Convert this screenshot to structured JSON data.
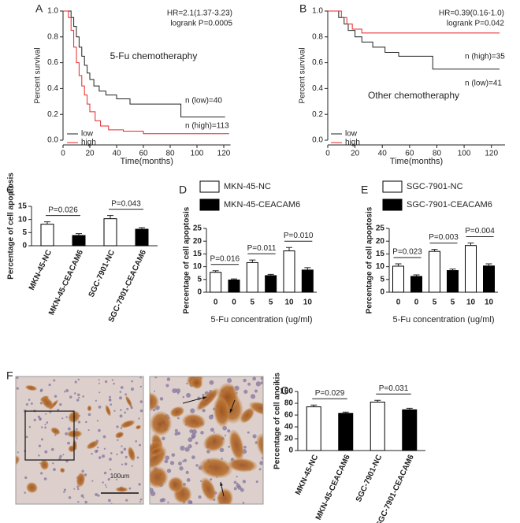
{
  "chart_data": [
    {
      "type": "line",
      "step": true,
      "panel": "A",
      "xlabel": "Time(months)",
      "ylabel": "Percent survival",
      "xlim": [
        0,
        125
      ],
      "xticks": [
        0,
        20,
        40,
        60,
        80,
        100,
        120
      ],
      "ylim": [
        0,
        1
      ],
      "yticks": [
        {
          "value": 0,
          "label": "0.0"
        },
        0.2,
        0.4,
        0.6,
        0.8,
        {
          "value": 1,
          "label": "1.0"
        }
      ],
      "annotations": [
        "HR=2.1(1.37-3.23)",
        "logrank P=0.0005",
        "5-Fu chemotheraphy",
        "n (low)=40",
        "n (high)=113"
      ],
      "legend": "lower left",
      "series": [
        {
          "name": "low",
          "color": "#222222",
          "x": [
            0,
            6,
            6,
            8,
            8,
            10,
            10,
            12,
            12,
            14,
            14,
            16,
            16,
            18,
            18,
            20,
            20,
            23,
            23,
            27,
            27,
            32,
            32,
            40,
            40,
            50,
            50,
            88,
            88,
            121
          ],
          "values": [
            1,
            1,
            0.95,
            0.95,
            0.88,
            0.88,
            0.8,
            0.8,
            0.72,
            0.72,
            0.65,
            0.65,
            0.58,
            0.58,
            0.52,
            0.52,
            0.47,
            0.47,
            0.42,
            0.42,
            0.38,
            0.38,
            0.35,
            0.35,
            0.32,
            0.32,
            0.28,
            0.28,
            0.18,
            0.18
          ]
        },
        {
          "name": "high",
          "color": "#e8262a",
          "x": [
            0,
            4,
            4,
            6,
            6,
            8,
            8,
            10,
            10,
            12,
            12,
            14,
            14,
            16,
            16,
            18,
            18,
            20,
            20,
            24,
            24,
            28,
            28,
            34,
            34,
            45,
            45,
            60,
            60,
            124
          ],
          "values": [
            1,
            1,
            0.95,
            0.95,
            0.85,
            0.85,
            0.72,
            0.72,
            0.6,
            0.6,
            0.5,
            0.5,
            0.42,
            0.42,
            0.35,
            0.35,
            0.28,
            0.28,
            0.22,
            0.22,
            0.15,
            0.15,
            0.11,
            0.11,
            0.08,
            0.08,
            0.07,
            0.07,
            0.05,
            0.05
          ]
        }
      ]
    },
    {
      "type": "line",
      "step": true,
      "panel": "B",
      "xlabel": "Time(months)",
      "ylabel": "Percent survival",
      "xlim": [
        0,
        130
      ],
      "xticks": [
        0,
        20,
        40,
        60,
        80,
        100,
        120
      ],
      "ylim": [
        0,
        1
      ],
      "yticks": [
        {
          "value": 0,
          "label": "0.0"
        },
        0.2,
        0.4,
        0.6,
        0.8,
        {
          "value": 1,
          "label": "1.0"
        }
      ],
      "annotations": [
        "HR=0.39(0.16-1.0)",
        "logrank P=0.042",
        "Other chemotheraphy",
        "n (high)=35",
        "n (low)=41"
      ],
      "legend": "lower left",
      "series": [
        {
          "name": "low",
          "color": "#222222",
          "x": [
            0,
            8,
            8,
            12,
            12,
            15,
            15,
            20,
            20,
            25,
            25,
            33,
            33,
            42,
            42,
            52,
            52,
            77,
            77,
            126
          ],
          "values": [
            1,
            1,
            0.95,
            0.95,
            0.9,
            0.9,
            0.85,
            0.85,
            0.8,
            0.8,
            0.76,
            0.76,
            0.72,
            0.72,
            0.68,
            0.68,
            0.65,
            0.65,
            0.55,
            0.55
          ]
        },
        {
          "name": "high",
          "color": "#e8262a",
          "x": [
            0,
            10,
            10,
            14,
            14,
            18,
            18,
            25,
            25,
            126
          ],
          "values": [
            1,
            1,
            0.95,
            0.95,
            0.9,
            0.9,
            0.86,
            0.86,
            0.83,
            0.83
          ]
        }
      ]
    },
    {
      "type": "bar",
      "panel": "C",
      "ylabel": "Percentage of cell apoptosis",
      "categories": [
        "MKN-45-NC",
        "MKN-45-CEACAM6",
        "SGC-7901-NC",
        "SGC-7901-CEACAM6"
      ],
      "values": [
        8.2,
        3.9,
        10.3,
        6.3
      ],
      "errors": [
        0.9,
        0.7,
        1.2,
        0.6
      ],
      "colors": [
        "#ffffff",
        "#000000",
        "#ffffff",
        "#000000"
      ],
      "ylim": [
        0,
        15
      ],
      "yticks": [
        0,
        5,
        10,
        15
      ],
      "annotations": [
        "P=0.026",
        "P=0.043"
      ]
    },
    {
      "type": "grouped_bar",
      "panel": "D",
      "ylabel": "Percentage of cell apoptosis",
      "xlabel": "5-Fu concentration (ug/ml)",
      "categories": [
        "0",
        "5",
        "10"
      ],
      "series": [
        {
          "name": "MKN-45-NC",
          "color": "#ffffff",
          "values": [
            7.8,
            11.6,
            16.2
          ],
          "errors": [
            0.6,
            1.0,
            1.3
          ]
        },
        {
          "name": "MKN-45-CEACAM6",
          "color": "#000000",
          "values": [
            4.8,
            6.5,
            8.7
          ],
          "errors": [
            0.4,
            0.5,
            0.9
          ]
        }
      ],
      "ylim": [
        0,
        25
      ],
      "yticks": [
        0,
        5,
        10,
        15,
        20,
        25
      ],
      "annotations": [
        "P=0.016",
        "P=0.011",
        "P=0.010"
      ]
    },
    {
      "type": "grouped_bar",
      "panel": "E",
      "ylabel": "Percentage of cell apoptosis",
      "xlabel": "5-Fu concentration (ug/ml)",
      "categories": [
        "0",
        "5",
        "10"
      ],
      "series": [
        {
          "name": "SGC-7901-NC",
          "color": "#ffffff",
          "values": [
            10.2,
            16,
            18.3
          ],
          "errors": [
            0.9,
            0.8,
            1.0
          ]
        },
        {
          "name": "SGC-7901-CEACAM6",
          "color": "#000000",
          "values": [
            6.2,
            8.5,
            10.3
          ],
          "errors": [
            0.6,
            0.6,
            0.8
          ]
        }
      ],
      "ylim": [
        0,
        25
      ],
      "yticks": [
        0,
        5,
        10,
        15,
        20,
        25
      ],
      "annotations": [
        "P=0.023",
        "P=0.003",
        "P=0.004"
      ]
    },
    {
      "type": "image",
      "panel": "F",
      "scale_label": "100um"
    },
    {
      "type": "bar",
      "panel": "G",
      "ylabel": "Percentage of cell anoikis",
      "categories": [
        "MKN-45-NC",
        "MKN-45-CEACAM6",
        "SGC-7901-NC",
        "SGC-7901-CEACAM6"
      ],
      "values": [
        74,
        63,
        82,
        69
      ],
      "errors": [
        3,
        2,
        3,
        2.5
      ],
      "colors": [
        "#ffffff",
        "#000000",
        "#ffffff",
        "#000000"
      ],
      "ylim": [
        0,
        100
      ],
      "yticks": [
        0,
        20,
        40,
        60,
        80,
        100
      ],
      "annotations": [
        "P=0.029",
        "P=0.031"
      ]
    }
  ]
}
